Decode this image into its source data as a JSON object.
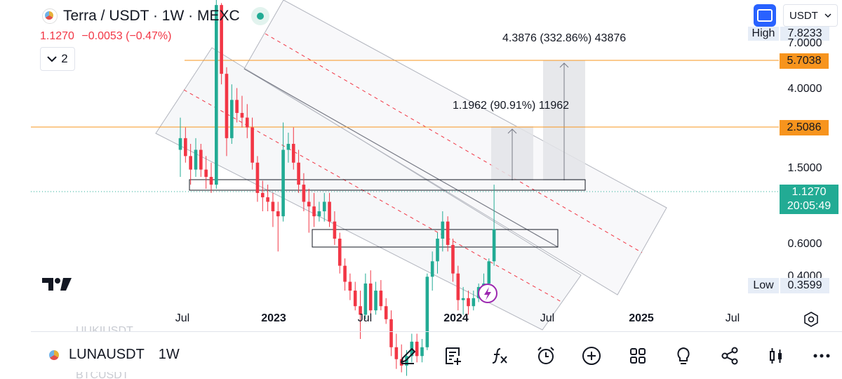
{
  "header": {
    "title": "Terra / USDT · 1W · MEXC",
    "last_price": "1.1270",
    "change": "−0.0053 (−0.47%)",
    "collapse_count": "2",
    "currency": "USDT"
  },
  "price_axis": {
    "labels": [
      "7.0000",
      "4.0000",
      "1.5000",
      "0.6000",
      "0.4000"
    ],
    "high_label": "High",
    "high_value": "7.8233",
    "low_label": "Low",
    "low_value": "0.3599",
    "upper_level": "5.7038",
    "lower_level": "2.5086",
    "current_price": "1.1270",
    "countdown": "20:05:49"
  },
  "measurements": {
    "big": "4.3876 (332.86%) 43876",
    "small": "1.1962 (90.91%) 11962"
  },
  "time_axis": {
    "ticks": [
      "Jul",
      "2023",
      "Jul",
      "2024",
      "Jul",
      "2025",
      "Jul"
    ]
  },
  "bottom_bar": {
    "symbol": "LUNAUSDT",
    "timeframe": "1W",
    "ghost_above": "UUKIUSDT",
    "ghost_below": "BTCUSDT"
  },
  "colors": {
    "up": "#22ab94",
    "down": "#f23645",
    "level_line": "#f7941d",
    "accent": "#2962ff"
  },
  "chart_data": {
    "type": "candlestick",
    "interval": "1W",
    "start": "2022-05",
    "end": "2024-02",
    "candles": [
      [
        2.1,
        2.7,
        1.7,
        2.3
      ],
      [
        2.3,
        2.5,
        1.9,
        2.0
      ],
      [
        2.0,
        2.2,
        1.6,
        1.8
      ],
      [
        1.8,
        2.3,
        1.7,
        2.1
      ],
      [
        2.1,
        2.2,
        1.7,
        1.8
      ],
      [
        1.8,
        2.0,
        1.55,
        1.7
      ],
      [
        1.7,
        1.9,
        1.5,
        1.6
      ],
      [
        1.6,
        7.8,
        1.55,
        6.5
      ],
      [
        6.5,
        6.6,
        3.5,
        3.8
      ],
      [
        3.8,
        4.0,
        2.0,
        2.3
      ],
      [
        2.3,
        3.5,
        2.2,
        3.1
      ],
      [
        3.1,
        3.4,
        2.6,
        2.8
      ],
      [
        2.8,
        3.2,
        2.5,
        2.7
      ],
      [
        2.7,
        3.0,
        2.3,
        2.5
      ],
      [
        2.5,
        2.7,
        1.8,
        1.9
      ],
      [
        1.9,
        2.0,
        1.4,
        1.5
      ],
      [
        1.5,
        1.65,
        1.3,
        1.45
      ],
      [
        1.45,
        1.6,
        1.3,
        1.4
      ],
      [
        1.4,
        1.5,
        1.15,
        1.3
      ],
      [
        1.3,
        1.4,
        0.95,
        1.25
      ],
      [
        1.25,
        2.6,
        1.2,
        2.1
      ],
      [
        2.1,
        2.4,
        1.9,
        2.2
      ],
      [
        2.2,
        2.5,
        1.8,
        1.9
      ],
      [
        1.9,
        2.1,
        1.5,
        1.6
      ],
      [
        1.6,
        1.75,
        1.3,
        1.4
      ],
      [
        1.4,
        1.55,
        1.1,
        1.35
      ],
      [
        1.35,
        1.5,
        1.15,
        1.25
      ],
      [
        1.25,
        1.4,
        1.2,
        1.3
      ],
      [
        1.3,
        1.5,
        1.2,
        1.4
      ],
      [
        1.4,
        1.5,
        1.15,
        1.2
      ],
      [
        1.2,
        1.3,
        1.0,
        1.05
      ],
      [
        1.05,
        1.1,
        0.8,
        0.85
      ],
      [
        0.85,
        0.9,
        0.7,
        0.75
      ],
      [
        0.75,
        0.8,
        0.65,
        0.7
      ],
      [
        0.7,
        0.75,
        0.6,
        0.62
      ],
      [
        0.62,
        0.7,
        0.48,
        0.58
      ],
      [
        0.58,
        0.8,
        0.56,
        0.74
      ],
      [
        0.74,
        0.82,
        0.58,
        0.6
      ],
      [
        0.6,
        0.75,
        0.58,
        0.7
      ],
      [
        0.7,
        0.76,
        0.6,
        0.62
      ],
      [
        0.62,
        0.66,
        0.54,
        0.56
      ],
      [
        0.56,
        0.6,
        0.42,
        0.45
      ],
      [
        0.45,
        0.5,
        0.38,
        0.41
      ],
      [
        0.41,
        0.46,
        0.37,
        0.39
      ],
      [
        0.39,
        0.44,
        0.36,
        0.42
      ],
      [
        0.42,
        0.5,
        0.4,
        0.47
      ],
      [
        0.47,
        0.5,
        0.4,
        0.42
      ],
      [
        0.42,
        0.48,
        0.4,
        0.45
      ],
      [
        0.45,
        0.8,
        0.44,
        0.78
      ],
      [
        0.78,
        0.95,
        0.7,
        0.88
      ],
      [
        0.88,
        1.1,
        0.8,
        1.05
      ],
      [
        1.05,
        1.3,
        0.95,
        1.2
      ],
      [
        1.2,
        1.25,
        0.95,
        1.0
      ],
      [
        1.0,
        1.05,
        0.75,
        0.8
      ],
      [
        0.8,
        0.85,
        0.6,
        0.65
      ],
      [
        0.65,
        0.72,
        0.58,
        0.66
      ],
      [
        0.66,
        0.7,
        0.58,
        0.62
      ],
      [
        0.62,
        0.7,
        0.6,
        0.66
      ],
      [
        0.66,
        0.74,
        0.64,
        0.72
      ],
      [
        0.72,
        0.8,
        0.66,
        0.74
      ],
      [
        0.74,
        0.9,
        0.72,
        0.88
      ],
      [
        0.88,
        1.6,
        0.85,
        1.13
      ]
    ],
    "y_scale": "log",
    "x_ticks": [
      "Jul",
      "2023",
      "Jul",
      "2024",
      "Jul",
      "2025",
      "Jul"
    ],
    "y_ticks": [
      "7.0000",
      "4.0000",
      "1.5000",
      "0.6000",
      "0.4000"
    ],
    "horizontal_levels": [
      5.7038,
      2.5086
    ],
    "zones": [
      {
        "low": 1.1,
        "high": 1.28,
        "start": "2022-06",
        "end": "2024-09"
      },
      {
        "low": 0.57,
        "high": 0.7,
        "start": "2023-04",
        "end": "2024-06"
      }
    ],
    "measures": [
      {
        "from": 1.31,
        "to": 2.51,
        "label": "1.1962 (90.91%) 11962"
      },
      {
        "from": 1.31,
        "to": 5.7,
        "label": "4.3876 (332.86%) 43876"
      }
    ]
  }
}
